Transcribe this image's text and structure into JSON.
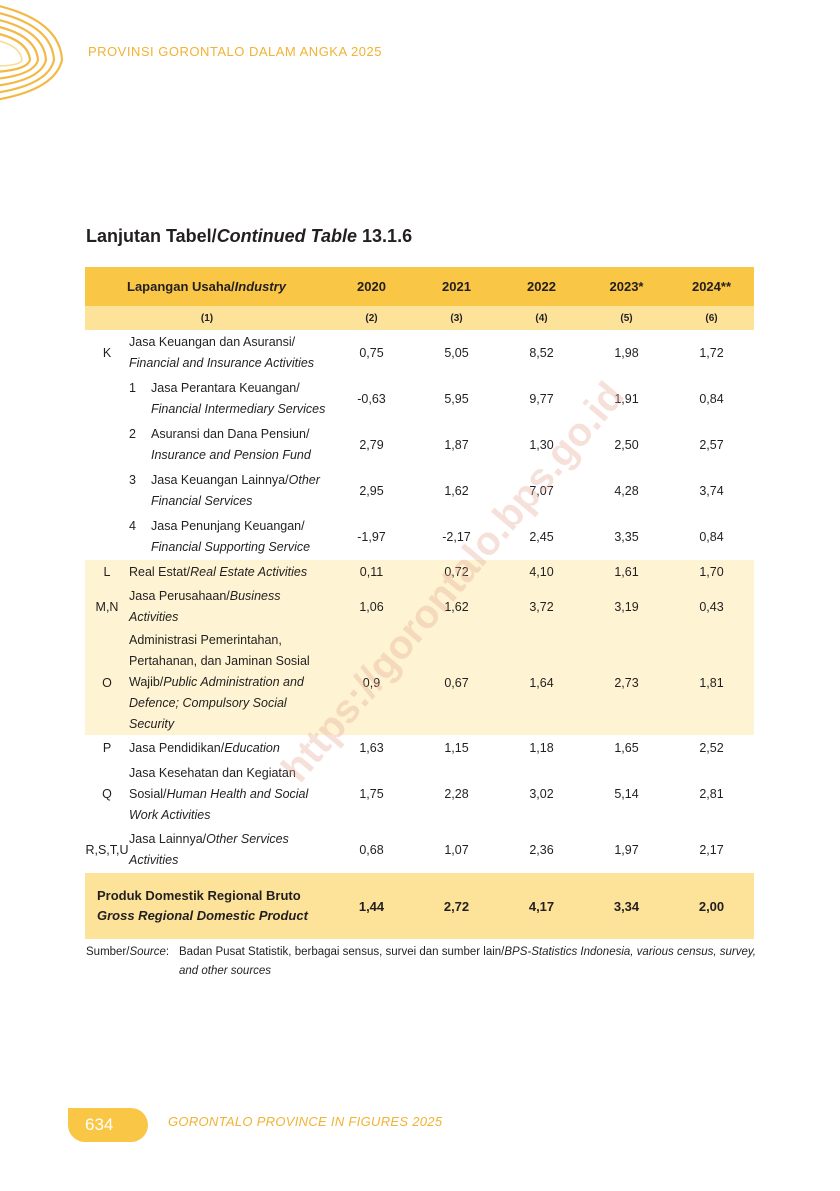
{
  "header": {
    "title": "PROVINSI GORONTALO DALAM ANGKA 2025"
  },
  "table_title": {
    "prefix": "Lanjutan Tabel/",
    "italic": "Continued Table",
    "number": "13.1.6"
  },
  "columns": {
    "industry_id": "Lapangan Usaha/",
    "industry_en": "Industry",
    "years": [
      "2020",
      "2021",
      "2022",
      "2023*",
      "2024**"
    ],
    "numbers": [
      "(1)",
      "(2)",
      "(3)",
      "(4)",
      "(5)",
      "(6)"
    ]
  },
  "rows": [
    {
      "code": "K",
      "sub": "",
      "id": "Jasa Keuangan dan Asuransi/",
      "en": "Financial and Insurance Activities",
      "values": [
        "0,75",
        "5,05",
        "8,52",
        "1,98",
        "1,72"
      ]
    },
    {
      "code": "",
      "sub": "1",
      "id": "Jasa Perantara Keuangan/",
      "en": "Financial Intermediary Services",
      "values": [
        "-0,63",
        "5,95",
        "9,77",
        "1,91",
        "0,84"
      ]
    },
    {
      "code": "",
      "sub": "2",
      "id": "Asuransi dan Dana Pensiun/",
      "en": "Insurance and Pension Fund",
      "values": [
        "2,79",
        "1,87",
        "1,30",
        "2,50",
        "2,57"
      ]
    },
    {
      "code": "",
      "sub": "3",
      "id": "Jasa Keuangan Lainnya/",
      "en": "Other Financial Services",
      "values": [
        "2,95",
        "1,62",
        "7,07",
        "4,28",
        "3,74"
      ]
    },
    {
      "code": "",
      "sub": "4",
      "id": "Jasa Penunjang Keuangan/",
      "en": "Financial Supporting Service",
      "values": [
        "-1,97",
        "-2,17",
        "2,45",
        "3,35",
        "0,84"
      ]
    },
    {
      "code": "L",
      "sub": "",
      "id": "Real Estat/",
      "en": "Real Estate Activities",
      "values": [
        "0,11",
        "0,72",
        "4,10",
        "1,61",
        "1,70"
      ]
    },
    {
      "code": "M,N",
      "sub": "",
      "id": "Jasa Perusahaan/",
      "en": "Business Activities",
      "values": [
        "1,06",
        "1,62",
        "3,72",
        "3,19",
        "0,43"
      ]
    },
    {
      "code": "O",
      "sub": "",
      "id": "Administrasi Pemerintahan, Pertahanan, dan Jaminan Sosial Wajib/",
      "en": "Public Administration and Defence; Compulsory Social Security",
      "values": [
        "0,9",
        "0,67",
        "1,64",
        "2,73",
        "1,81"
      ]
    },
    {
      "code": "P",
      "sub": "",
      "id": "Jasa Pendidikan/",
      "en": "Education",
      "values": [
        "1,63",
        "1,15",
        "1,18",
        "1,65",
        "2,52"
      ]
    },
    {
      "code": "Q",
      "sub": "",
      "id": "Jasa Kesehatan dan Kegiatan Sosial/",
      "en": "Human Health and Social Work Activities",
      "values": [
        "1,75",
        "2,28",
        "3,02",
        "5,14",
        "2,81"
      ]
    },
    {
      "code": "R,S,T,U",
      "sub": "",
      "id": "Jasa Lainnya/",
      "en": "Other Services Activities",
      "values": [
        "0,68",
        "1,07",
        "2,36",
        "1,97",
        "2,17"
      ]
    }
  ],
  "total": {
    "id": "Produk Domestik Regional Bruto",
    "en": "Gross Regional Domestic Product",
    "values": [
      "1,44",
      "2,72",
      "4,17",
      "3,34",
      "2,00"
    ]
  },
  "source": {
    "label_id": "Sumber/",
    "label_en": "Source",
    "label_colon": ":",
    "text_id": "Badan Pusat Statistik, berbagai sensus, survei dan sumber lain/",
    "text_en": "BPS-Statistics Indonesia, various census, survey, and other sources"
  },
  "watermark": "https://gorontalo.bps.go.id",
  "footer": {
    "page_number": "634",
    "title": "GORONTALO PROVINCE IN FIGURES 2025"
  },
  "colors": {
    "accent": "#f9c646",
    "header_text": "#f2b233",
    "light_row": "#fef3d2",
    "subheader": "#fde39a"
  }
}
